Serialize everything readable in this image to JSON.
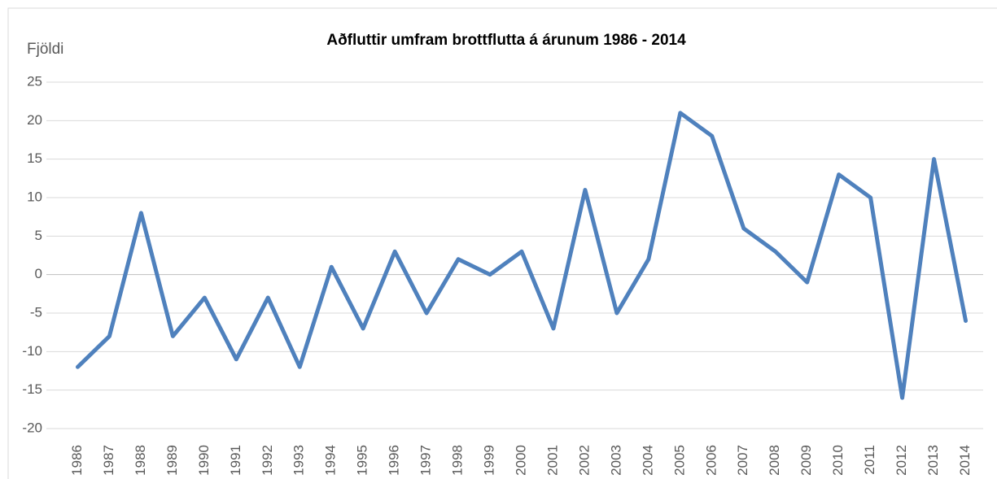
{
  "chart_data": {
    "type": "line",
    "title": "Aðfluttir umfram brottflutta á árunum 1986 - 2014",
    "y_label": "Fjöldi",
    "categories": [
      "1986",
      "1987",
      "1988",
      "1989",
      "1990",
      "1991",
      "1992",
      "1993",
      "1994",
      "1995",
      "1996",
      "1997",
      "1998",
      "1999",
      "2000",
      "2001",
      "2002",
      "2003",
      "2004",
      "2005",
      "2006",
      "2007",
      "2008",
      "2009",
      "2010",
      "2011",
      "2012",
      "2013",
      "2014"
    ],
    "series": [
      {
        "name": "Aðfluttir umfram brottflutta",
        "color": "#4f81bd",
        "values": [
          -12,
          -8,
          8,
          -8,
          -3,
          -11,
          -3,
          -12,
          1,
          -7,
          3,
          -5,
          2,
          0,
          3,
          -7,
          11,
          -5,
          2,
          21,
          18,
          6,
          3,
          -1,
          13,
          10,
          -16,
          15,
          -6
        ]
      }
    ],
    "ylim": [
      -20,
      25
    ],
    "yticks": [
      -20,
      -15,
      -10,
      -5,
      0,
      5,
      10,
      15,
      20,
      25
    ],
    "grid": true
  }
}
